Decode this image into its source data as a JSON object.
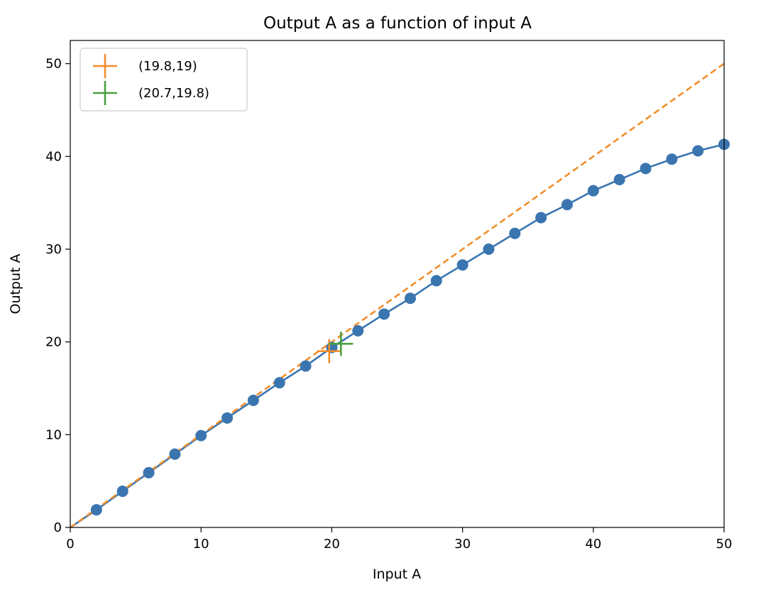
{
  "chart_data": {
    "type": "line",
    "title": "Output A as a function of input A",
    "xlabel": "Input A",
    "ylabel": "Output A",
    "xlim": [
      0,
      50
    ],
    "ylim": [
      0,
      52.5
    ],
    "xticks": [
      0,
      10,
      20,
      30,
      40,
      50
    ],
    "yticks": [
      0,
      10,
      20,
      30,
      40,
      50
    ],
    "grid": false,
    "legend_position": "top-left",
    "series": [
      {
        "kind": "line-markers",
        "color": "#3a75b0",
        "x": [
          0,
          2,
          4,
          6,
          8,
          10,
          12,
          14,
          16,
          18,
          20,
          22,
          24,
          26,
          28,
          30,
          32,
          34,
          36,
          38,
          40,
          42,
          44,
          46,
          48,
          50
        ],
        "y": [
          0,
          1.9,
          3.9,
          5.9,
          7.9,
          9.9,
          11.8,
          13.7,
          15.6,
          17.4,
          19.4,
          21.2,
          23.0,
          24.7,
          26.6,
          28.3,
          30.0,
          31.7,
          33.4,
          34.8,
          36.3,
          37.5,
          38.7,
          39.7,
          40.6,
          41.3
        ]
      },
      {
        "kind": "dashed-line",
        "color": "#f28e2b",
        "x": [
          0,
          50
        ],
        "y": [
          0,
          50
        ]
      },
      {
        "kind": "plus-marker",
        "name": "(19.8,19)",
        "color": "#f28e2b",
        "x": [
          19.8
        ],
        "y": [
          19
        ]
      },
      {
        "kind": "plus-marker",
        "name": "(20.7,19.8)",
        "color": "#4aa03f",
        "x": [
          20.7
        ],
        "y": [
          19.8
        ]
      }
    ]
  }
}
